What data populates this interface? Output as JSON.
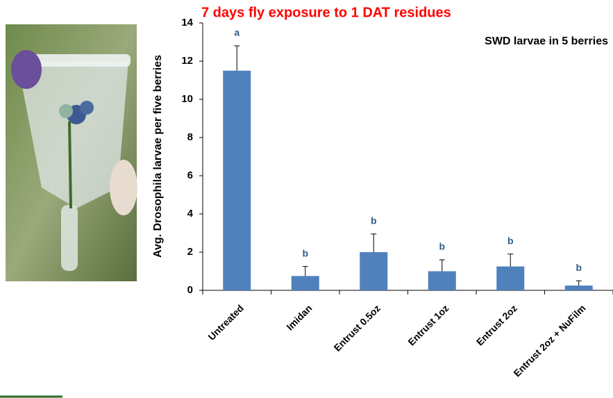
{
  "chart_data": {
    "type": "bar",
    "title": "7 days fly exposure to 1 DAT residues",
    "annotation": "SWD larvae in 5 berries",
    "y_label": "Avg. Drosophila larvae per five berries",
    "categories": [
      "Untreated",
      "Imidan",
      "Entrust 0.5oz",
      "Entrust 1oz",
      "Entrust 2oz",
      "Entrust 2oz + NuFilm"
    ],
    "values": [
      11.5,
      0.75,
      2.0,
      1.0,
      1.25,
      0.25
    ],
    "errors": [
      1.3,
      0.5,
      0.95,
      0.6,
      0.65,
      0.25
    ],
    "letters": [
      "a",
      "b",
      "b",
      "b",
      "b",
      "b"
    ],
    "color": "#4f81bd",
    "ylim": [
      0,
      14
    ],
    "yticks": [
      0,
      2,
      4,
      6,
      8,
      10,
      12,
      14
    ]
  }
}
